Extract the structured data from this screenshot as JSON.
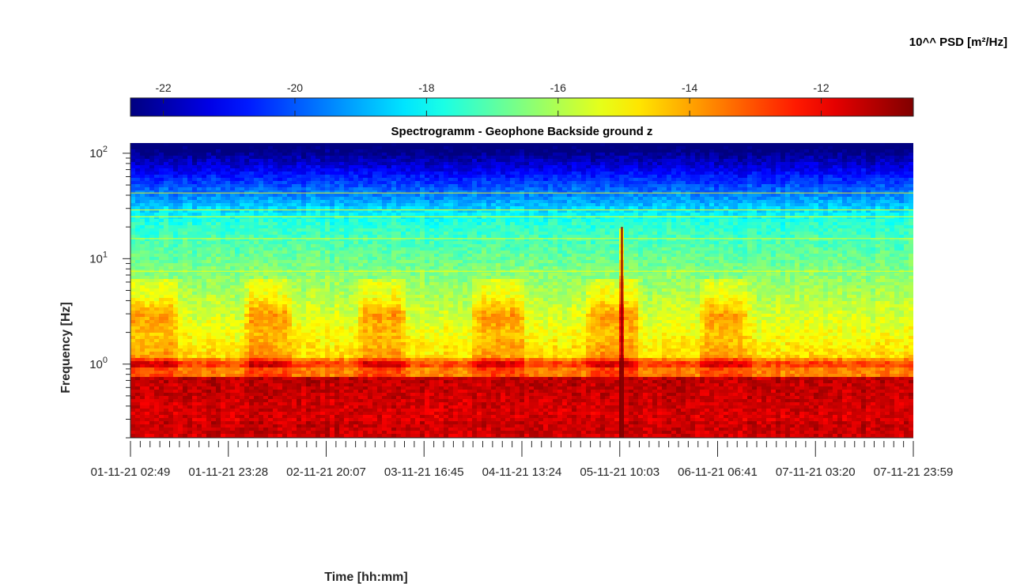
{
  "chart_data": {
    "type": "heatmap",
    "title": "Spectrogramm - Geophone Backside ground z",
    "xlabel": "Time [hh:mm]",
    "ylabel": "Frequency [Hz]",
    "y_scale": "log",
    "ylim": [
      0.2,
      125
    ],
    "y_ticks": [
      {
        "value": 1,
        "base": "10",
        "exp": "0"
      },
      {
        "value": 10,
        "base": "10",
        "exp": "1"
      },
      {
        "value": 100,
        "base": "10",
        "exp": "2"
      }
    ],
    "x_tick_labels": [
      "01-11-21  02:49",
      "01-11-21  23:28",
      "02-11-21  20:07",
      "03-11-21  16:45",
      "04-11-21  13:24",
      "05-11-21  10:03",
      "06-11-21  06:41",
      "07-11-21  03:20",
      "07-11-21  23:59"
    ],
    "x_range": [
      "01-11-21 02:49",
      "07-11-21 23:59"
    ],
    "colorbar": {
      "label": "10^^ PSD [m²/Hz]",
      "colormap": "jet",
      "range": [
        -22.5,
        -10.6
      ],
      "ticks": [
        "-22",
        "-20",
        "-18",
        "-16",
        "-14",
        "-12"
      ],
      "tick_values": [
        -22,
        -20,
        -18,
        -16,
        -14,
        -12
      ],
      "placement": "top"
    },
    "features": {
      "daytime_activity_bands_hz": [
        2,
        4
      ],
      "activity_periods": [
        {
          "start": "01-11-21 02:49",
          "end": "01-11-21 12:00"
        },
        {
          "start": "02-11-21 04:00",
          "end": "02-11-21 12:00"
        },
        {
          "start": "03-11-21 04:00",
          "end": "03-11-21 12:00"
        },
        {
          "start": "04-11-21 04:00",
          "end": "04-11-21 13:00"
        },
        {
          "start": "05-11-21 04:00",
          "end": "05-11-21 13:00"
        },
        {
          "start": "06-11-21 04:00",
          "end": "06-11-21 12:00"
        }
      ],
      "event_spike_time": "05-11-21 10:30",
      "tonal_line_hz": 1.0,
      "narrowband_lines_hz": [
        7.6,
        15.5,
        25,
        29,
        42
      ]
    }
  }
}
